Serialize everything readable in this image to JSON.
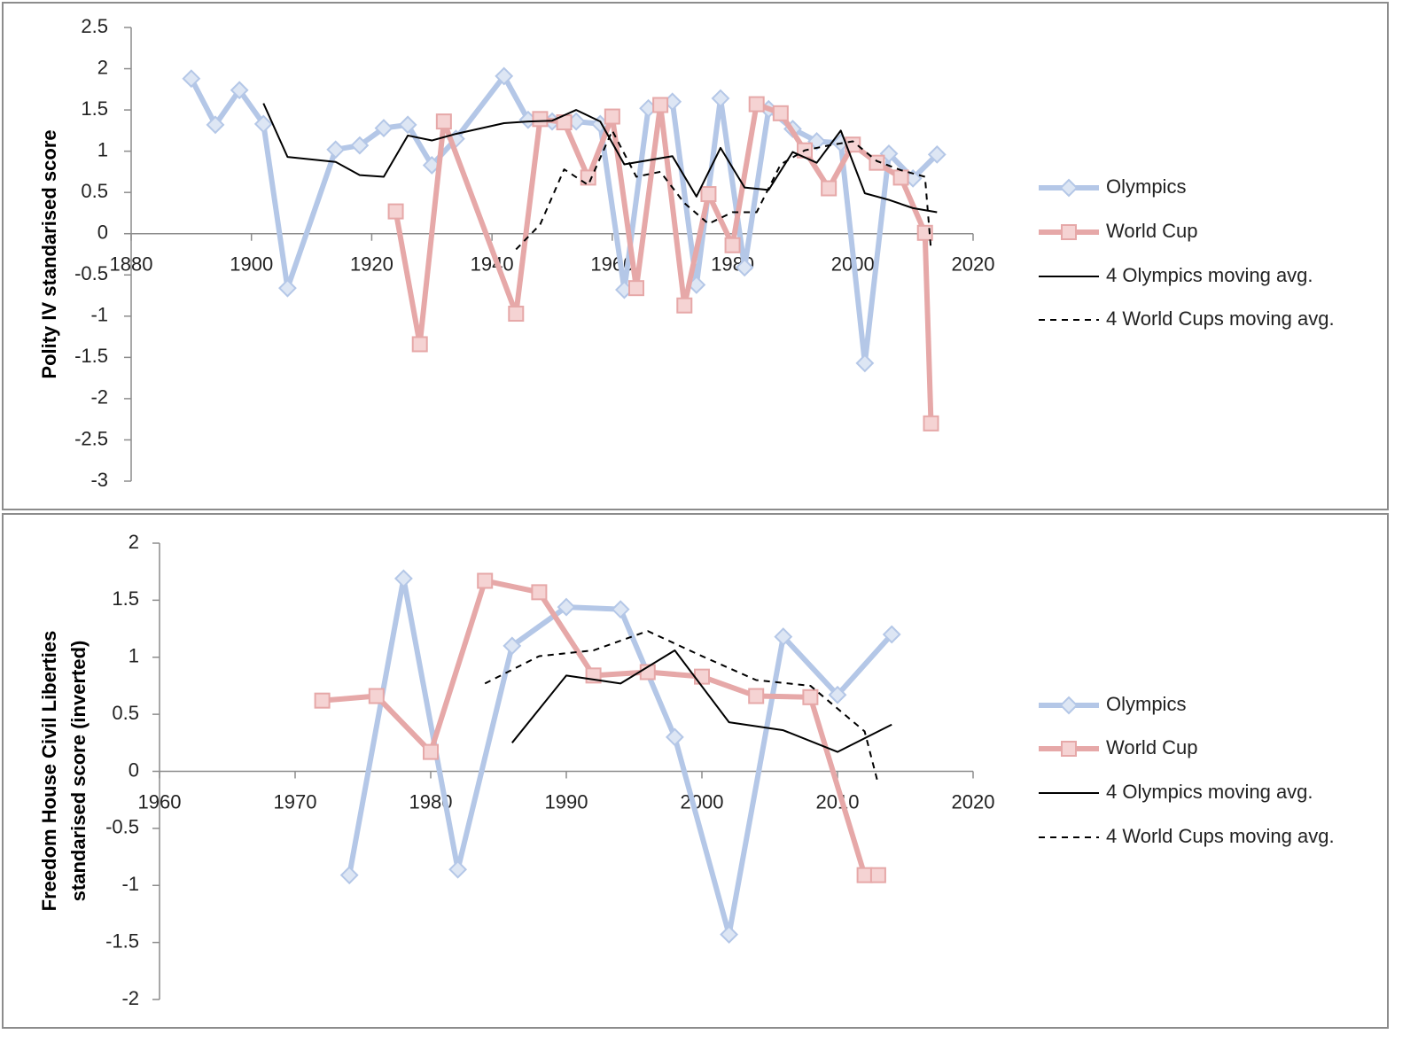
{
  "chart_data": [
    {
      "type": "line",
      "ylabel": [
        "Polity IV standarised score"
      ],
      "xlim": [
        1880,
        2020
      ],
      "xticks": [
        1880,
        1900,
        1920,
        1940,
        1960,
        1980,
        2000,
        2020
      ],
      "ylim": [
        -3,
        2.5
      ],
      "yticks": [
        2.5,
        2,
        1.5,
        1,
        0.5,
        0,
        -0.5,
        -1,
        -1.5,
        -2,
        -2.5,
        -3
      ],
      "legend": "right",
      "series": [
        {
          "name": "Olympics",
          "color": "#b4c7e7",
          "marker": "diamond",
          "dash": "solid",
          "x": [
            1890,
            1894,
            1898,
            1902,
            1906,
            1914,
            1918,
            1922,
            1926,
            1930,
            1934,
            1942,
            1946,
            1950,
            1954,
            1958,
            1962,
            1966,
            1970,
            1974,
            1978,
            1982,
            1986,
            1990,
            1994,
            1998,
            2002,
            2006,
            2010,
            2014
          ],
          "values": [
            1.88,
            1.32,
            1.74,
            1.33,
            -0.66,
            1.02,
            1.07,
            1.28,
            1.32,
            0.83,
            1.15,
            1.91,
            1.38,
            1.36,
            1.36,
            1.33,
            -0.68,
            1.52,
            1.6,
            -0.62,
            1.64,
            -0.41,
            1.51,
            1.27,
            1.12,
            1.1,
            -1.57,
            0.97,
            0.67,
            0.96
          ]
        },
        {
          "name": "World Cup",
          "color": "#e6a8a8",
          "marker": "square",
          "dash": "solid",
          "x": [
            1924,
            1928,
            1932,
            1944,
            1948,
            1952,
            1956,
            1960,
            1964,
            1968,
            1972,
            1976,
            1980,
            1984,
            1988,
            1992,
            1996,
            2000,
            2004,
            2008,
            2012,
            2013
          ],
          "values": [
            0.27,
            -1.34,
            1.36,
            -0.97,
            1.39,
            1.35,
            0.68,
            1.42,
            -0.66,
            1.56,
            -0.87,
            0.48,
            -0.14,
            1.57,
            1.46,
            1.01,
            0.55,
            1.08,
            0.86,
            0.68,
            0.01,
            -2.3
          ]
        },
        {
          "name": "4 Olympics moving avg.",
          "color": "#000000",
          "marker": null,
          "dash": "solid",
          "x": [
            1902,
            1906,
            1914,
            1918,
            1922,
            1926,
            1930,
            1934,
            1942,
            1946,
            1950,
            1954,
            1958,
            1962,
            1966,
            1970,
            1974,
            1978,
            1982,
            1986,
            1990,
            1994,
            1998,
            2002,
            2006,
            2010,
            2014
          ],
          "values": [
            1.58,
            0.93,
            0.87,
            0.71,
            0.69,
            1.19,
            1.13,
            1.21,
            1.34,
            1.36,
            1.37,
            1.5,
            1.36,
            0.84,
            0.89,
            0.94,
            0.45,
            1.04,
            0.56,
            0.53,
            0.99,
            0.86,
            1.25,
            0.49,
            0.41,
            0.31,
            0.26
          ]
        },
        {
          "name": "4 World Cups moving avg.",
          "color": "#000000",
          "marker": null,
          "dash": "dashed",
          "x": [
            1944,
            1948,
            1952,
            1956,
            1960,
            1964,
            1968,
            1972,
            1976,
            1980,
            1984,
            1988,
            1992,
            1996,
            2000,
            2004,
            2008,
            2012,
            2013
          ],
          "values": [
            -0.19,
            0.11,
            0.78,
            0.59,
            1.25,
            0.69,
            0.75,
            0.37,
            0.12,
            0.26,
            0.26,
            0.84,
            1.01,
            1.07,
            1.12,
            0.88,
            0.77,
            0.69,
            -0.2
          ]
        }
      ]
    },
    {
      "type": "line",
      "ylabel": [
        "Freedom House Civil Liberties",
        "standarised score (inverted)"
      ],
      "xlim": [
        1960,
        2020
      ],
      "xticks": [
        1960,
        1970,
        1980,
        1990,
        2000,
        2010,
        2020
      ],
      "ylim": [
        -2,
        2
      ],
      "yticks": [
        2,
        1.5,
        1,
        0.5,
        0,
        -0.5,
        -1,
        -1.5,
        -2
      ],
      "legend": "right",
      "series": [
        {
          "name": "Olympics",
          "color": "#b4c7e7",
          "marker": "diamond",
          "dash": "solid",
          "x": [
            1974,
            1978,
            1982,
            1986,
            1990,
            1994,
            1998,
            2002,
            2006,
            2010,
            2014
          ],
          "values": [
            -0.91,
            1.69,
            -0.86,
            1.1,
            1.44,
            1.42,
            0.3,
            -1.43,
            1.18,
            0.67,
            1.2
          ]
        },
        {
          "name": "World Cup",
          "color": "#e6a8a8",
          "marker": "square",
          "dash": "solid",
          "x": [
            1972,
            1976,
            1980,
            1984,
            1988,
            1992,
            1996,
            2000,
            2004,
            2008,
            2012,
            2013
          ],
          "values": [
            0.62,
            0.66,
            0.17,
            1.67,
            1.57,
            0.84,
            0.87,
            0.83,
            0.66,
            0.65,
            -0.91,
            -0.91
          ]
        },
        {
          "name": "4 Olympics moving avg.",
          "color": "#000000",
          "marker": null,
          "dash": "solid",
          "x": [
            1986,
            1990,
            1994,
            1998,
            2002,
            2006,
            2010,
            2014
          ],
          "values": [
            0.25,
            0.84,
            0.77,
            1.06,
            0.43,
            0.36,
            0.17,
            0.41
          ]
        },
        {
          "name": "4 World Cups moving avg.",
          "color": "#000000",
          "marker": null,
          "dash": "dashed",
          "x": [
            1984,
            1988,
            1992,
            1996,
            2000,
            2004,
            2008,
            2012,
            2013
          ],
          "values": [
            0.77,
            1.01,
            1.06,
            1.23,
            1.01,
            0.8,
            0.75,
            0.35,
            -0.11
          ]
        }
      ]
    }
  ]
}
